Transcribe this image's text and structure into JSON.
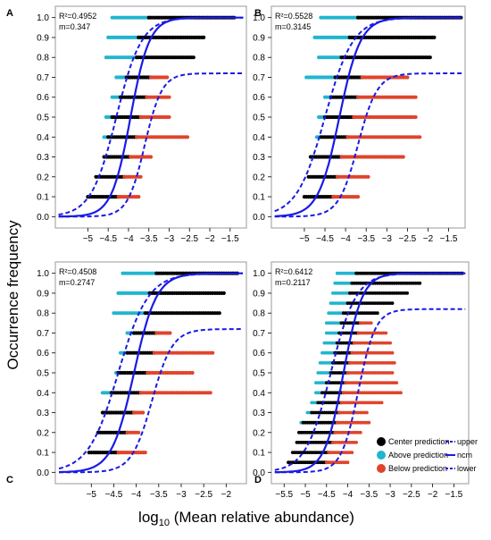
{
  "figure": {
    "ylabel": "Occurrence frequency",
    "xlabel_prefix": "log",
    "xlabel_sub": "10",
    "xlabel_suffix": " (Mean relative abundance)"
  },
  "legend": {
    "center": "Center prediction",
    "above": "Above prediction",
    "below": "Below prediction",
    "upper": "upper",
    "ncm": "ncm",
    "lower": "lower"
  },
  "colors": {
    "center": "#000000",
    "above": "#21b5cf",
    "below": "#e0442b",
    "curve": "#1a1ae6",
    "frame": "#999999"
  },
  "chart_data": [
    {
      "label": "A",
      "type": "scatter",
      "r2_text": "R²=0.4952",
      "m_text": "m=0.347",
      "xlim": [
        -5.8,
        -1.1
      ],
      "ylim": [
        -0.03,
        1.03
      ],
      "xticks": [
        -5,
        -4.5,
        -4,
        -3.5,
        -3,
        -2.5,
        -2,
        -1.5
      ],
      "yticks": [
        0.0,
        0.1,
        0.2,
        0.3,
        0.4,
        0.5,
        0.6,
        0.7,
        0.8,
        0.9,
        1.0
      ],
      "ncm_midpoint": -3.95,
      "ncm_slope": 4.3,
      "upper_curve": {
        "x50": -4.3,
        "max": 1.0
      },
      "lower_curve": {
        "x50": -3.6,
        "max": 0.72
      },
      "rows": [
        {
          "y": 0.1,
          "above": [
            -5.0,
            -5.0
          ],
          "center": [
            -5.0,
            -4.25
          ],
          "below": [
            -4.25,
            -3.75
          ]
        },
        {
          "y": 0.2,
          "above": [
            -4.8,
            -4.8
          ],
          "center": [
            -4.8,
            -4.1
          ],
          "below": [
            -4.1,
            -3.7
          ]
        },
        {
          "y": 0.3,
          "above": [
            -4.6,
            -4.6
          ],
          "center": [
            -4.6,
            -3.95
          ],
          "below": [
            -3.95,
            -3.45
          ]
        },
        {
          "y": 0.4,
          "above": [
            -4.6,
            -4.5
          ],
          "center": [
            -4.5,
            -3.8
          ],
          "below": [
            -3.8,
            -2.55
          ]
        },
        {
          "y": 0.5,
          "above": [
            -4.55,
            -4.4
          ],
          "center": [
            -4.4,
            -3.7
          ],
          "below": [
            -3.7,
            -3.0
          ]
        },
        {
          "y": 0.6,
          "above": [
            -4.4,
            -4.2
          ],
          "center": [
            -4.2,
            -3.55
          ],
          "below": [
            -3.55,
            -3.0
          ]
        },
        {
          "y": 0.7,
          "above": [
            -4.3,
            -4.05
          ],
          "center": [
            -4.05,
            -3.45
          ],
          "below": [
            -3.45,
            -3.05
          ]
        },
        {
          "y": 0.8,
          "above": [
            -4.55,
            -3.8
          ],
          "center": [
            -3.8,
            -2.4
          ],
          "below": [
            -2.4,
            -2.4
          ]
        },
        {
          "y": 0.9,
          "above": [
            -4.5,
            -3.75
          ],
          "center": [
            -3.75,
            -2.15
          ],
          "below": [
            -2.15,
            -2.15
          ]
        },
        {
          "y": 1.0,
          "above": [
            -4.4,
            -3.5
          ],
          "center": [
            -3.5,
            -1.4
          ],
          "below": [
            -1.4,
            -1.4
          ]
        }
      ]
    },
    {
      "label": "B",
      "type": "scatter",
      "r2_text": "R²=0.5528",
      "m_text": "m=0.3145",
      "xlim": [
        -5.8,
        -1.1
      ],
      "ylim": [
        -0.03,
        1.03
      ],
      "xticks": [
        -5,
        -4.5,
        -4,
        -3.5,
        -3,
        -2.5,
        -2,
        -1.5
      ],
      "yticks": [
        0.0,
        0.1,
        0.2,
        0.3,
        0.4,
        0.5,
        0.6,
        0.7,
        0.8,
        0.9,
        1.0
      ],
      "ncm_midpoint": -4.15,
      "ncm_slope": 3.9,
      "upper_curve": {
        "x50": -4.5,
        "max": 1.0
      },
      "lower_curve": {
        "x50": -3.7,
        "max": 0.72
      },
      "rows": [
        {
          "y": 0.1,
          "above": [
            -5.0,
            -5.0
          ],
          "center": [
            -5.0,
            -4.3
          ],
          "below": [
            -4.3,
            -3.7
          ]
        },
        {
          "y": 0.2,
          "above": [
            -4.9,
            -4.9
          ],
          "center": [
            -4.9,
            -4.2
          ],
          "below": [
            -4.2,
            -3.45
          ]
        },
        {
          "y": 0.3,
          "above": [
            -4.85,
            -4.85
          ],
          "center": [
            -4.85,
            -4.1
          ],
          "below": [
            -4.1,
            -2.6
          ]
        },
        {
          "y": 0.4,
          "above": [
            -4.7,
            -4.6
          ],
          "center": [
            -4.6,
            -3.95
          ],
          "below": [
            -3.95,
            -2.2
          ]
        },
        {
          "y": 0.5,
          "above": [
            -4.65,
            -4.5
          ],
          "center": [
            -4.5,
            -3.8
          ],
          "below": [
            -3.8,
            -2.3
          ]
        },
        {
          "y": 0.6,
          "above": [
            -4.5,
            -4.35
          ],
          "center": [
            -4.35,
            -3.7
          ],
          "below": [
            -3.7,
            -2.3
          ]
        },
        {
          "y": 0.7,
          "above": [
            -4.95,
            -4.25
          ],
          "center": [
            -4.25,
            -3.6
          ],
          "below": [
            -3.6,
            -2.5
          ]
        },
        {
          "y": 0.8,
          "above": [
            -4.65,
            -4.1
          ],
          "center": [
            -4.1,
            -1.95
          ],
          "below": [
            -1.95,
            -1.95
          ]
        },
        {
          "y": 0.9,
          "above": [
            -4.75,
            -3.9
          ],
          "center": [
            -3.9,
            -1.85
          ],
          "below": [
            -1.85,
            -1.85
          ]
        },
        {
          "y": 1.0,
          "above": [
            -4.6,
            -3.7
          ],
          "center": [
            -3.7,
            -1.2
          ],
          "below": [
            -1.2,
            -1.2
          ]
        }
      ]
    },
    {
      "label": "C",
      "type": "scatter",
      "r2_text": "R²=0.4508",
      "m_text": "m=0.2747",
      "xlim": [
        -5.8,
        -1.55
      ],
      "ylim": [
        -0.03,
        1.03
      ],
      "xticks": [
        -5,
        -4.5,
        -4,
        -3.5,
        -3,
        -2.5,
        -2
      ],
      "yticks": [
        0.0,
        0.1,
        0.2,
        0.3,
        0.4,
        0.5,
        0.6,
        0.7,
        0.8,
        0.9,
        1.0
      ],
      "ncm_midpoint": -4.05,
      "ncm_slope": 4.0,
      "upper_curve": {
        "x50": -4.4,
        "max": 1.0
      },
      "lower_curve": {
        "x50": -3.65,
        "max": 0.72
      },
      "rows": [
        {
          "y": 0.1,
          "above": [
            -5.05,
            -5.05
          ],
          "center": [
            -5.05,
            -4.4
          ],
          "below": [
            -4.4,
            -3.8
          ]
        },
        {
          "y": 0.2,
          "above": [
            -4.85,
            -4.85
          ],
          "center": [
            -4.85,
            -4.2
          ],
          "below": [
            -4.2,
            -3.95
          ]
        },
        {
          "y": 0.3,
          "above": [
            -4.75,
            -4.75
          ],
          "center": [
            -4.75,
            -4.05
          ],
          "below": [
            -4.05,
            -3.85
          ]
        },
        {
          "y": 0.4,
          "above": [
            -4.75,
            -4.55
          ],
          "center": [
            -4.55,
            -3.9
          ],
          "below": [
            -3.9,
            -2.35
          ]
        },
        {
          "y": 0.5,
          "above": [
            -4.45,
            -4.4
          ],
          "center": [
            -4.4,
            -3.75
          ],
          "below": [
            -3.75,
            -2.75
          ]
        },
        {
          "y": 0.6,
          "above": [
            -4.35,
            -4.2
          ],
          "center": [
            -4.2,
            -3.6
          ],
          "below": [
            -3.6,
            -2.3
          ]
        },
        {
          "y": 0.7,
          "above": [
            -4.2,
            -4.05
          ],
          "center": [
            -4.05,
            -3.55
          ],
          "below": [
            -3.55,
            -3.25
          ]
        },
        {
          "y": 0.8,
          "above": [
            -4.5,
            -3.8
          ],
          "center": [
            -3.8,
            -2.15
          ],
          "below": [
            -2.15,
            -2.15
          ]
        },
        {
          "y": 0.9,
          "above": [
            -4.4,
            -3.7
          ],
          "center": [
            -3.7,
            -2.05
          ],
          "below": [
            -2.05,
            -2.05
          ]
        },
        {
          "y": 1.0,
          "above": [
            -4.3,
            -3.55
          ],
          "center": [
            -3.55,
            -1.75
          ],
          "below": [
            -1.75,
            -1.75
          ]
        }
      ]
    },
    {
      "label": "D",
      "type": "scatter",
      "r2_text": "R²=0.6412",
      "m_text": "m=0.2117",
      "xlim": [
        -5.8,
        -1.15
      ],
      "ylim": [
        -0.03,
        1.03
      ],
      "xticks": [
        -5.5,
        -5,
        -4.5,
        -4,
        -3.5,
        -3,
        -2.5,
        -2,
        -1.5
      ],
      "yticks": [
        0.0,
        0.1,
        0.2,
        0.3,
        0.4,
        0.5,
        0.6,
        0.7,
        0.8,
        0.9,
        1.0
      ],
      "ncm_midpoint": -4.1,
      "ncm_slope": 4.5,
      "upper_curve": {
        "x50": -4.4,
        "max": 1.0
      },
      "lower_curve": {
        "x50": -3.75,
        "max": 0.82
      },
      "rows": [
        {
          "y": 0.05,
          "above": [
            -5.4,
            -5.4
          ],
          "center": [
            -5.4,
            -4.5
          ],
          "below": [
            -4.5,
            -4.0
          ]
        },
        {
          "y": 0.1,
          "above": [
            -5.3,
            -5.3
          ],
          "center": [
            -5.3,
            -4.45
          ],
          "below": [
            -4.45,
            -3.9
          ]
        },
        {
          "y": 0.15,
          "above": [
            -5.2,
            -5.2
          ],
          "center": [
            -5.2,
            -4.35
          ],
          "below": [
            -4.35,
            -3.8
          ]
        },
        {
          "y": 0.2,
          "above": [
            -5.15,
            -5.15
          ],
          "center": [
            -5.15,
            -4.3
          ],
          "below": [
            -4.3,
            -3.7
          ]
        },
        {
          "y": 0.25,
          "above": [
            -5.1,
            -5.05
          ],
          "center": [
            -5.05,
            -4.25
          ],
          "below": [
            -4.25,
            -3.5
          ]
        },
        {
          "y": 0.3,
          "above": [
            -4.95,
            -4.85
          ],
          "center": [
            -4.85,
            -4.2
          ],
          "below": [
            -4.2,
            -3.55
          ]
        },
        {
          "y": 0.35,
          "above": [
            -4.85,
            -4.7
          ],
          "center": [
            -4.7,
            -4.15
          ],
          "below": [
            -4.15,
            -3.2
          ]
        },
        {
          "y": 0.4,
          "above": [
            -4.75,
            -4.6
          ],
          "center": [
            -4.6,
            -4.1
          ],
          "below": [
            -4.1,
            -2.75
          ]
        },
        {
          "y": 0.45,
          "above": [
            -4.75,
            -4.5
          ],
          "center": [
            -4.5,
            -4.05
          ],
          "below": [
            -4.05,
            -2.85
          ]
        },
        {
          "y": 0.5,
          "above": [
            -4.7,
            -4.4
          ],
          "center": [
            -4.4,
            -4.0
          ],
          "below": [
            -4.0,
            -2.95
          ]
        },
        {
          "y": 0.55,
          "above": [
            -4.65,
            -4.35
          ],
          "center": [
            -4.35,
            -3.95
          ],
          "below": [
            -3.95,
            -2.9
          ]
        },
        {
          "y": 0.6,
          "above": [
            -4.6,
            -4.3
          ],
          "center": [
            -4.3,
            -3.9
          ],
          "below": [
            -3.9,
            -2.95
          ]
        },
        {
          "y": 0.65,
          "above": [
            -4.55,
            -4.25
          ],
          "center": [
            -4.25,
            -3.85
          ],
          "below": [
            -3.85,
            -3.0
          ]
        },
        {
          "y": 0.7,
          "above": [
            -4.5,
            -4.2
          ],
          "center": [
            -4.2,
            -3.75
          ],
          "below": [
            -3.75,
            -3.1
          ]
        },
        {
          "y": 0.75,
          "above": [
            -4.5,
            -4.15
          ],
          "center": [
            -4.15,
            -3.7
          ],
          "below": [
            -3.7,
            -3.45
          ]
        },
        {
          "y": 0.8,
          "above": [
            -4.45,
            -4.1
          ],
          "center": [
            -4.1,
            -3.3
          ],
          "below": [
            -3.3,
            -3.3
          ]
        },
        {
          "y": 0.85,
          "above": [
            -4.4,
            -4.0
          ],
          "center": [
            -4.0,
            -2.95
          ],
          "below": [
            -2.95,
            -2.95
          ]
        },
        {
          "y": 0.9,
          "above": [
            -4.35,
            -3.95
          ],
          "center": [
            -3.95,
            -2.6
          ],
          "below": [
            -2.6,
            -2.6
          ]
        },
        {
          "y": 0.95,
          "above": [
            -4.3,
            -3.9
          ],
          "center": [
            -3.9,
            -2.3
          ],
          "below": [
            -2.3,
            -2.3
          ]
        },
        {
          "y": 1.0,
          "above": [
            -4.25,
            -3.8
          ],
          "center": [
            -3.8,
            -1.3
          ],
          "below": [
            -1.3,
            -1.3
          ]
        }
      ]
    }
  ]
}
